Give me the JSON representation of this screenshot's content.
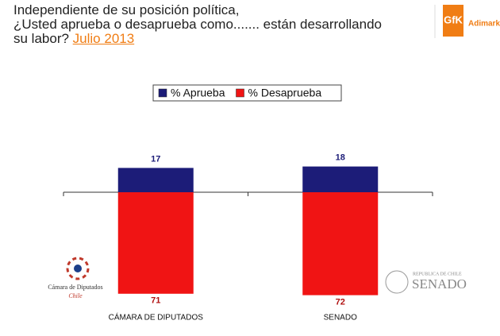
{
  "chart_data": {
    "type": "diverging_bar",
    "title": [
      "Independiente de su posición política,",
      "¿Usted aprueba o desaprueba como....... están desarrollando",
      "su labor?"
    ],
    "subtitle": "Julio 2013",
    "categories": [
      "CÁMARA DE DIPUTADOS",
      "SENADO"
    ],
    "series": [
      {
        "name": "% Aprueba",
        "color": "#1c1c78",
        "values": [
          17,
          18
        ]
      },
      {
        "name": "% Desaprueba",
        "color": "#f01414",
        "values": [
          -71,
          -72
        ],
        "value_labels": [
          "71",
          "72"
        ]
      }
    ]
  },
  "logos": {
    "gfk": "GfK",
    "adimark": "Adimark",
    "camara": "Cámara de Diputados",
    "camara_country": "Chile",
    "senado_country": "REPUBLICA DE CHILE",
    "senado": "SENADO"
  }
}
